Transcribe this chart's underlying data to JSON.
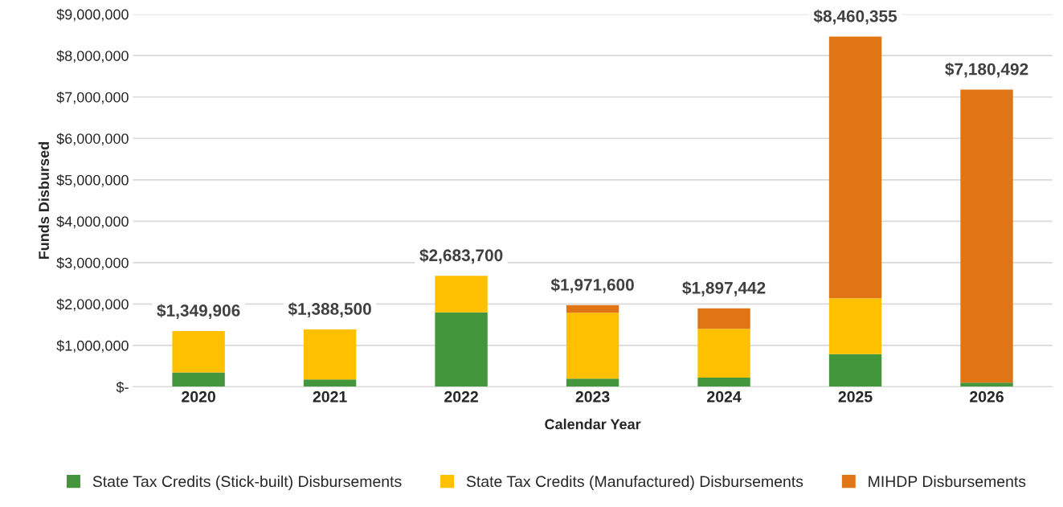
{
  "chart_data": {
    "type": "bar",
    "stacked": true,
    "xlabel": "Calendar Year",
    "ylabel": "Funds Disbursed",
    "categories": [
      "2020",
      "2021",
      "2022",
      "2023",
      "2024",
      "2025",
      "2026"
    ],
    "series": [
      {
        "name": "State Tax Credits (Stick-built) Disbursements",
        "color": "#43963b",
        "values": [
          350000,
          180000,
          1800000,
          200000,
          220000,
          790000,
          100000
        ]
      },
      {
        "name": "State Tax Credits (Manufactured) Disbursements",
        "color": "#ffc000",
        "values": [
          999906,
          1208500,
          883700,
          1591600,
          1180000,
          1350000,
          null
        ]
      },
      {
        "name": "MIHDP Disbursements",
        "color": "#e07516",
        "values": [
          null,
          null,
          null,
          180000,
          497442,
          6320355,
          7080492
        ]
      }
    ],
    "totals": [
      "$1,349,906",
      "$1,388,500",
      "$2,683,700",
      "$1,971,600",
      "$1,897,442",
      "$8,460,355",
      "$7,180,492"
    ],
    "ylim": [
      0,
      9000000
    ],
    "yticks": [
      {
        "value": 0,
        "label": "$-"
      },
      {
        "value": 1000000,
        "label": "$1,000,000"
      },
      {
        "value": 2000000,
        "label": "$2,000,000"
      },
      {
        "value": 3000000,
        "label": "$3,000,000"
      },
      {
        "value": 4000000,
        "label": "$4,000,000"
      },
      {
        "value": 5000000,
        "label": "$5,000,000"
      },
      {
        "value": 6000000,
        "label": "$6,000,000"
      },
      {
        "value": 7000000,
        "label": "$7,000,000"
      },
      {
        "value": 8000000,
        "label": "$8,000,000"
      },
      {
        "value": 9000000,
        "label": "$9,000,000"
      }
    ],
    "grid": "y",
    "legend": "bottom"
  }
}
